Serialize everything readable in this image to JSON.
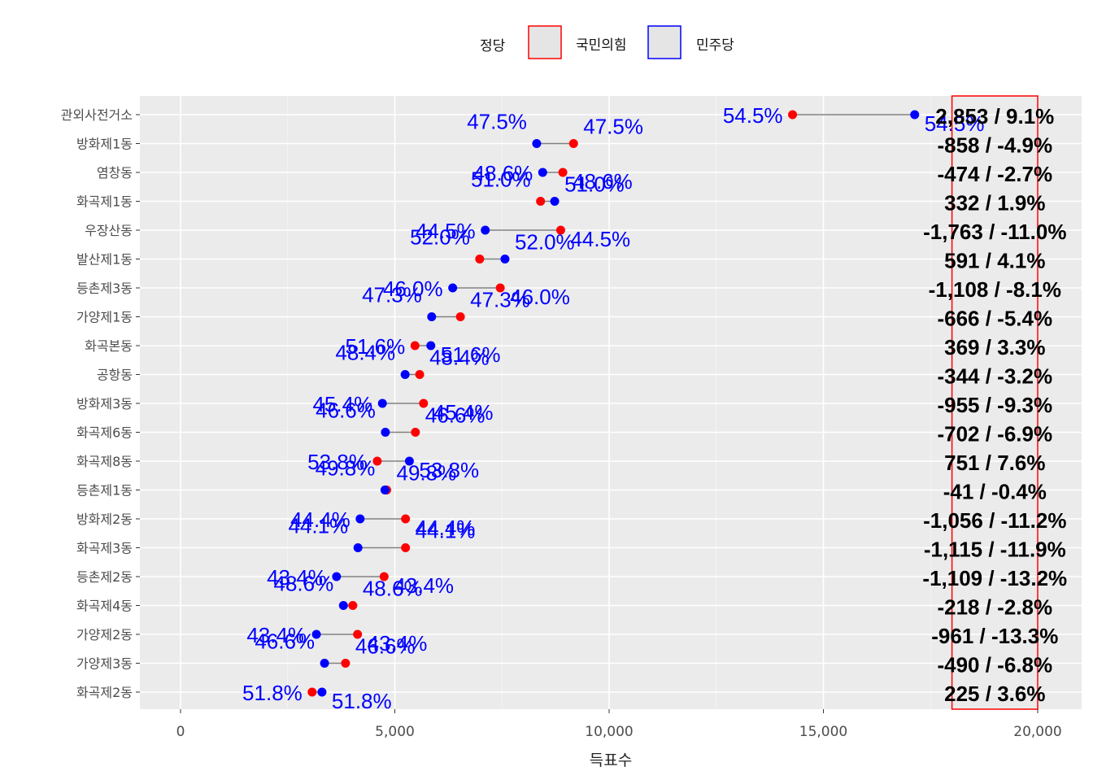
{
  "chart_data": {
    "type": "dumbbell",
    "xlabel": "득표수",
    "ylabel": "",
    "xlim": [
      -1000,
      20000
    ],
    "x_ticks": [
      0,
      5000,
      10000,
      15000,
      20000
    ],
    "x_tick_labels": [
      "0",
      "5,000",
      "10,000",
      "15,000",
      "20,000"
    ],
    "legend": {
      "title": "정당",
      "position": "top",
      "entries": [
        {
          "name": "국민의힘",
          "color": "#ff0000"
        },
        {
          "name": "민주당",
          "color": "#0000ff"
        }
      ]
    },
    "categories": [
      "관외사전거소",
      "방화제1동",
      "염창동",
      "화곡제1동",
      "우장산동",
      "발산제1동",
      "등촌제3동",
      "가양제1동",
      "화곡본동",
      "공항동",
      "방화제3동",
      "화곡제6동",
      "화곡제8동",
      "등촌제1동",
      "방화제2동",
      "화곡제3동",
      "등촌제2동",
      "화곡제4동",
      "가양제2동",
      "가양제3동",
      "화곡제2동"
    ],
    "series": [
      {
        "name": "국민의힘",
        "color": "#ff0000",
        "values": [
          14280,
          9170,
          8920,
          8400,
          8870,
          6980,
          7460,
          6530,
          5470,
          5580,
          5670,
          5480,
          4590,
          4810,
          5250,
          5250,
          4750,
          4020,
          4130,
          3850,
          3070
        ]
      },
      {
        "name": "민주당",
        "color": "#0000ff",
        "values": [
          17130,
          8310,
          8450,
          8730,
          7110,
          7570,
          6350,
          5860,
          5840,
          5240,
          4710,
          4780,
          5340,
          4770,
          4190,
          4140,
          3640,
          3800,
          3170,
          3360,
          3300
        ]
      }
    ],
    "labels_left": [
      "54.5%",
      "47.5%",
      "48.6%",
      "51.0%",
      "44.5%",
      "52.0%",
      "46.0%",
      "47.3%",
      "51.6%",
      "48.4%",
      "45.4%",
      "46.6%",
      "53.8%",
      "49.8%",
      "44.4%",
      "44.1%",
      "43.4%",
      "48.6%",
      "43.4%",
      "46.6%",
      "51.8%"
    ],
    "labels_right": [
      "54.5%",
      "47.5%",
      "48.6%",
      "51.0%",
      "44.5%",
      "52.0%",
      "46.0%",
      "47.3%",
      "51.6%",
      "48.4%",
      "45.4%",
      "46.6%",
      "53.8%",
      "49.8%",
      "44.4%",
      "44.1%",
      "43.4%",
      "48.6%",
      "43.4%",
      "46.6%",
      "51.8%"
    ],
    "diff_labels": [
      "2,853 / 9.1%",
      "-858 / -4.9%",
      "-474 / -2.7%",
      "332 / 1.9%",
      "-1,763 / -11.0%",
      "591 / 4.1%",
      "-1,108 / -8.1%",
      "-666 / -5.4%",
      "369 / 3.3%",
      "-344 / -3.2%",
      "-955 / -9.3%",
      "-702 / -6.9%",
      "751 / 7.6%",
      "-41 / -0.4%",
      "-1,056 / -11.2%",
      "-1,115 / -11.9%",
      "-1,109 / -13.2%",
      "-218 / -2.8%",
      "-961 / -13.3%",
      "-490 / -6.8%",
      "225 / 3.6%"
    ],
    "highlight_box": {
      "x_range": [
        18000,
        20000
      ],
      "color": "#ff0000"
    },
    "grid": true
  }
}
